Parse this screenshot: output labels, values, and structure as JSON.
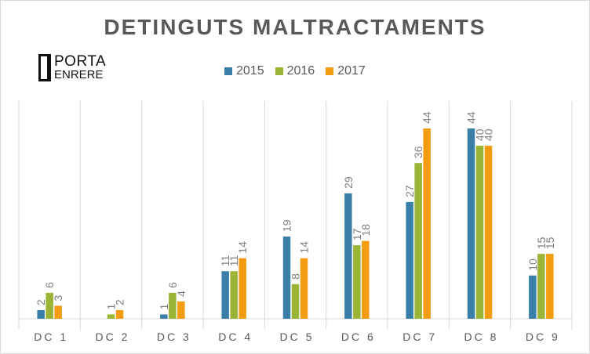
{
  "chart_data": {
    "type": "bar",
    "title": "DETINGUTS  MALTRACTAMENTS",
    "categories": [
      "DC 1",
      "DC 2",
      "DC 3",
      "DC 4",
      "DC 5",
      "DC 6",
      "DC 7",
      "DC 8",
      "DC 9"
    ],
    "series": [
      {
        "name": "2015",
        "color": "#3a7fa7",
        "values": [
          2,
          0,
          1,
          11,
          19,
          29,
          27,
          44,
          10
        ]
      },
      {
        "name": "2016",
        "color": "#9bb435",
        "values": [
          6,
          1,
          6,
          11,
          8,
          17,
          36,
          40,
          15
        ]
      },
      {
        "name": "2017",
        "color": "#f39c12",
        "values": [
          3,
          2,
          4,
          14,
          14,
          18,
          44,
          40,
          15
        ]
      }
    ],
    "ylim": [
      0,
      44
    ],
    "legend_position": "top-center",
    "vertical_gridlines": true,
    "data_labels_shown": [
      [
        true,
        true,
        true
      ],
      [
        false,
        true,
        true
      ],
      [
        true,
        true,
        true
      ],
      [
        true,
        true,
        true
      ],
      [
        true,
        true,
        true
      ],
      [
        true,
        true,
        true
      ],
      [
        true,
        true,
        true
      ],
      [
        true,
        true,
        true
      ],
      [
        true,
        true,
        true
      ]
    ]
  },
  "logo": {
    "line1": "PORTA",
    "line2": "ENRERE"
  }
}
